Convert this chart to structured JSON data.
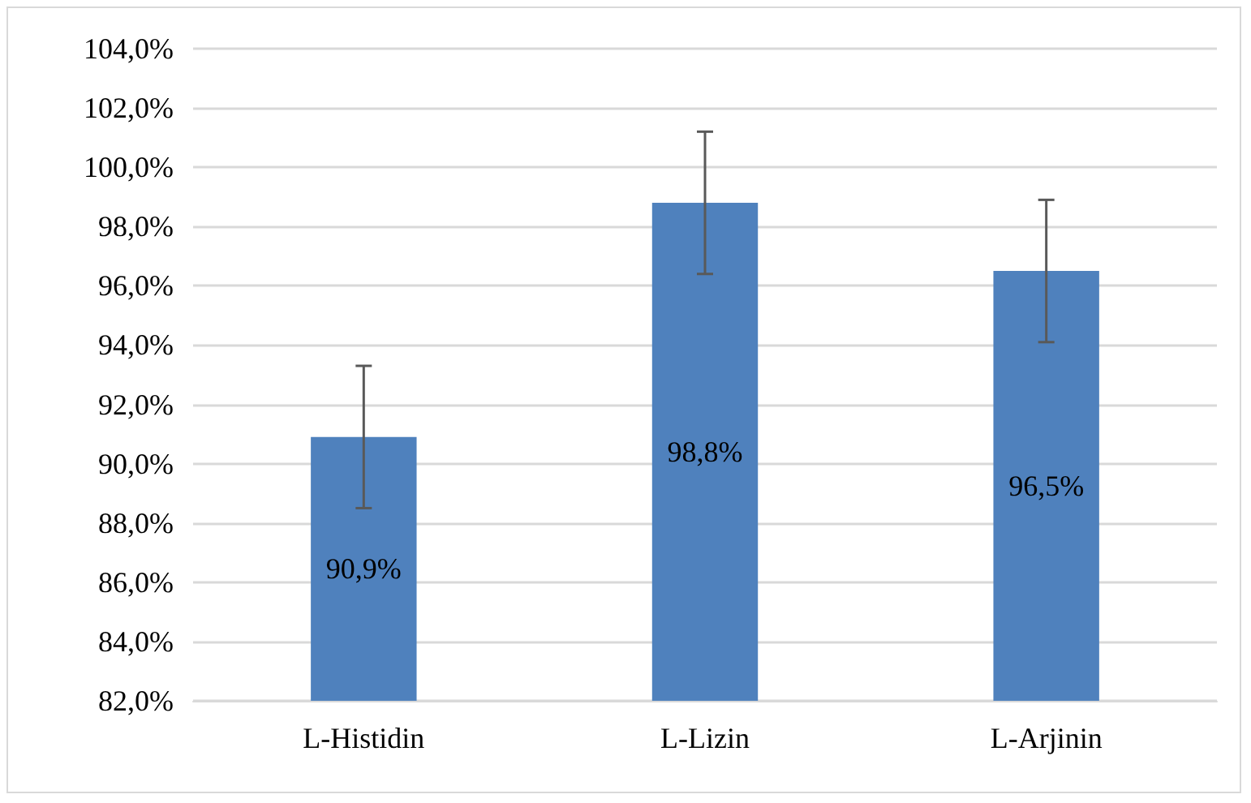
{
  "chart_data": {
    "type": "bar",
    "categories": [
      "L-Histidin",
      "L-Lizin",
      "L-Arjinin"
    ],
    "values": [
      90.9,
      98.8,
      96.5
    ],
    "color": "#4f81bd",
    "errors": [
      2.4,
      2.4,
      2.4
    ],
    "value_labels": [
      "90,9%",
      "98,8%",
      "96,5%"
    ],
    "ylim": [
      82,
      104
    ],
    "yticks": [
      {
        "value": 82,
        "label": "82,0%"
      },
      {
        "value": 84,
        "label": "84,0%"
      },
      {
        "value": 86,
        "label": "86,0%"
      },
      {
        "value": 88,
        "label": "88,0%"
      },
      {
        "value": 90,
        "label": "90,0%"
      },
      {
        "value": 92,
        "label": "92,0%"
      },
      {
        "value": 94,
        "label": "94,0%"
      },
      {
        "value": 96,
        "label": "96,0%"
      },
      {
        "value": 98,
        "label": "98,0%"
      },
      {
        "value": 100,
        "label": "100,0%"
      },
      {
        "value": 102,
        "label": "102,0%"
      },
      {
        "value": 104,
        "label": "104,0%"
      }
    ],
    "grid": "y"
  }
}
